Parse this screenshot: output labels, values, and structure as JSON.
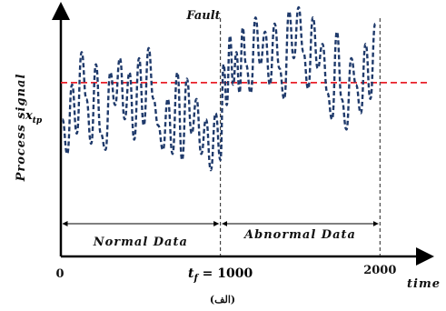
{
  "chart_data": {
    "type": "line",
    "title": "",
    "xlabel": "time",
    "ylabel": "Process signal",
    "caption": "(الف)",
    "xlim": [
      0,
      2300
    ],
    "ylim": [
      0,
      1
    ],
    "x_ticks": [
      {
        "value": 0,
        "label": "0"
      },
      {
        "value": 1000,
        "label": "t_f = 1000"
      },
      {
        "value": 2000,
        "label": "2000"
      }
    ],
    "threshold": {
      "label": "x_tp",
      "value": 0.63,
      "color": "#e8202a",
      "style": "dashed"
    },
    "fault": {
      "label": "Fault",
      "x": 1000
    },
    "end_marker": {
      "x": 2000
    },
    "regions": [
      {
        "label": "Normal Data",
        "from": 0,
        "to": 1000
      },
      {
        "label": "Abnormal Data",
        "from": 1000,
        "to": 2000
      }
    ],
    "series": [
      {
        "name": "",
        "color": "#1f3a6b",
        "style": "dashed",
        "x": [
          10,
          40,
          70,
          100,
          130,
          160,
          190,
          220,
          250,
          280,
          310,
          340,
          370,
          400,
          430,
          460,
          490,
          520,
          550,
          580,
          610,
          640,
          670,
          700,
          730,
          760,
          790,
          820,
          850,
          880,
          910,
          940,
          970,
          1000,
          1020,
          1040,
          1060,
          1080,
          1100,
          1120,
          1140,
          1160,
          1190,
          1220,
          1250,
          1280,
          1310,
          1340,
          1370,
          1400,
          1430,
          1460,
          1490,
          1520,
          1550,
          1580,
          1610,
          1640,
          1670,
          1700,
          1730,
          1760,
          1790,
          1820,
          1850,
          1880,
          1910,
          1940,
          1970
        ],
        "y": [
          0.45,
          0.28,
          0.62,
          0.38,
          0.78,
          0.55,
          0.33,
          0.72,
          0.38,
          0.3,
          0.68,
          0.52,
          0.75,
          0.45,
          0.68,
          0.35,
          0.75,
          0.42,
          0.8,
          0.55,
          0.42,
          0.3,
          0.55,
          0.28,
          0.68,
          0.25,
          0.65,
          0.38,
          0.55,
          0.28,
          0.45,
          0.2,
          0.48,
          0.25,
          0.72,
          0.52,
          0.86,
          0.62,
          0.78,
          0.58,
          0.9,
          0.72,
          0.58,
          0.95,
          0.72,
          0.88,
          0.62,
          0.92,
          0.7,
          0.55,
          0.98,
          0.75,
          1.0,
          0.78,
          0.6,
          0.95,
          0.7,
          0.82,
          0.58,
          0.45,
          0.88,
          0.55,
          0.4,
          0.75,
          0.62,
          0.48,
          0.82,
          0.55,
          0.92
        ]
      }
    ]
  }
}
